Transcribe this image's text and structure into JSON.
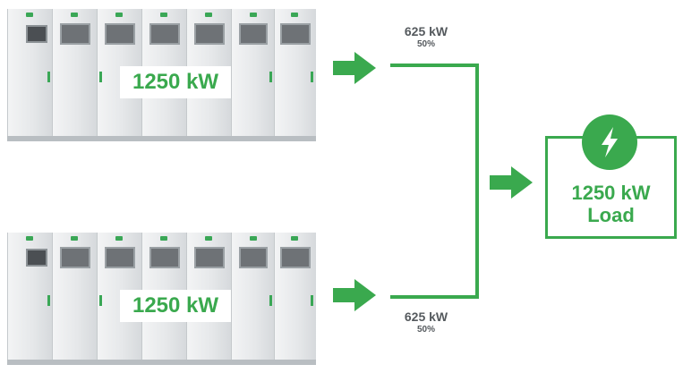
{
  "ups_units": [
    {
      "rating": "1250 kW"
    },
    {
      "rating": "1250 kW"
    }
  ],
  "branches": [
    {
      "power": "625 kW",
      "share": "50%",
      "share_value": 50
    },
    {
      "power": "625 kW",
      "share": "50%",
      "share_value": 50
    }
  ],
  "load": {
    "line1": "1250 kW",
    "line2": "Load",
    "icon": "lightning-bolt-icon"
  },
  "colors": {
    "accent": "#3aa94e",
    "label": "#555a5e",
    "cabinet": "#e9ebec"
  }
}
